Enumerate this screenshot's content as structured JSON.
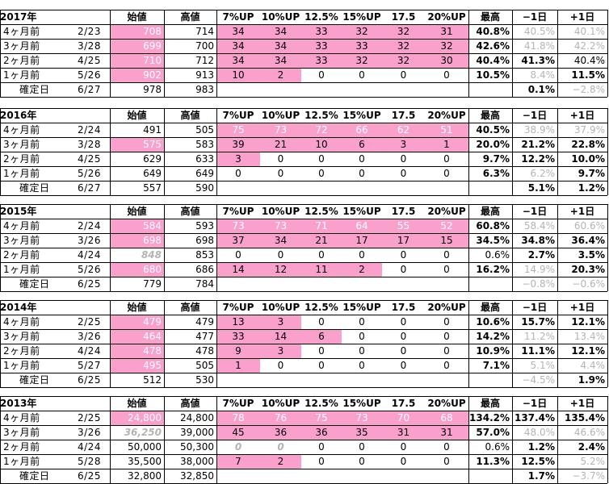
{
  "columns": [
    "始値",
    "高値",
    "7%UP",
    "10%UP",
    "12.5%",
    "15%UP",
    "17.5",
    "20%UP",
    "最高",
    "−1日",
    "+1日"
  ],
  "blocks": [
    {
      "year": "2017年",
      "rows": [
        {
          "label": "4ヶ月前",
          "date": "2/23",
          "open": "708",
          "high": "714",
          "c7": "34",
          "c10": "34",
          "c125": "33",
          "c15": "32",
          "c175": "32",
          "c20": "31",
          "max": "40.8%",
          "m1": "40.5%",
          "p1": "40.1%"
        },
        {
          "label": "3ヶ月前",
          "date": "3/28",
          "open": "699",
          "high": "700",
          "c7": "34",
          "c10": "34",
          "c125": "33",
          "c15": "33",
          "c175": "32",
          "c20": "32",
          "max": "42.6%",
          "m1": "41.8%",
          "p1": "42.2%"
        },
        {
          "label": "2ヶ月前",
          "date": "4/25",
          "open": "710",
          "high": "712",
          "c7": "34",
          "c10": "34",
          "c125": "33",
          "c15": "32",
          "c175": "32",
          "c20": "30",
          "max": "40.4%",
          "m1": "41.3%",
          "p1": "40.4%"
        },
        {
          "label": "1ヶ月前",
          "date": "5/26",
          "open": "902",
          "high": "913",
          "c7": "10",
          "c10": "2",
          "c125": "0",
          "c15": "0",
          "c175": "0",
          "c20": "0",
          "max": "10.5%",
          "m1": "8.4%",
          "p1": "11.5%"
        }
      ],
      "confirm": {
        "label": "確定日",
        "date": "6/27",
        "open": "978",
        "high": "983",
        "m1": "0.1%",
        "p1": "−2.8%"
      }
    },
    {
      "year": "2016年",
      "rows": [
        {
          "label": "4ヶ月前",
          "date": "2/24",
          "open": "491",
          "high": "505",
          "c7": "75",
          "c10": "73",
          "c125": "72",
          "c15": "66",
          "c175": "62",
          "c20": "51",
          "max": "40.5%",
          "m1": "38.9%",
          "p1": "37.9%"
        },
        {
          "label": "3ヶ月前",
          "date": "3/28",
          "open": "575",
          "high": "583",
          "c7": "39",
          "c10": "21",
          "c125": "10",
          "c15": "6",
          "c175": "3",
          "c20": "1",
          "max": "20.0%",
          "m1": "21.2%",
          "p1": "22.8%"
        },
        {
          "label": "2ヶ月前",
          "date": "4/25",
          "open": "629",
          "high": "633",
          "c7": "3",
          "c10": "0",
          "c125": "0",
          "c15": "0",
          "c175": "0",
          "c20": "0",
          "max": "9.7%",
          "m1": "12.2%",
          "p1": "10.0%"
        },
        {
          "label": "1ヶ月前",
          "date": "5/26",
          "open": "649",
          "high": "649",
          "c7": "0",
          "c10": "0",
          "c125": "0",
          "c15": "0",
          "c175": "0",
          "c20": "0",
          "max": "6.3%",
          "m1": "6.2%",
          "p1": "9.7%"
        }
      ],
      "confirm": {
        "label": "確定日",
        "date": "6/27",
        "open": "557",
        "high": "590",
        "m1": "5.1%",
        "p1": "1.2%"
      }
    },
    {
      "year": "2015年",
      "rows": [
        {
          "label": "4ヶ月前",
          "date": "2/24",
          "open": "584",
          "high": "593",
          "c7": "73",
          "c10": "73",
          "c125": "71",
          "c15": "64",
          "c175": "55",
          "c20": "52",
          "max": "60.8%",
          "m1": "58.4%",
          "p1": "60.6%"
        },
        {
          "label": "3ヶ月前",
          "date": "3/26",
          "open": "698",
          "high": "698",
          "c7": "37",
          "c10": "34",
          "c125": "21",
          "c15": "17",
          "c175": "17",
          "c20": "15",
          "max": "34.5%",
          "m1": "34.8%",
          "p1": "36.4%"
        },
        {
          "label": "2ヶ月前",
          "date": "4/24",
          "open": "848",
          "high": "853",
          "c7": "0",
          "c10": "0",
          "c125": "0",
          "c15": "0",
          "c175": "0",
          "c20": "0",
          "max": "0.6%",
          "m1": "2.7%",
          "p1": "3.5%"
        },
        {
          "label": "1ヶ月前",
          "date": "5/26",
          "open": "680",
          "high": "686",
          "c7": "14",
          "c10": "12",
          "c125": "11",
          "c15": "2",
          "c175": "0",
          "c20": "0",
          "max": "16.2%",
          "m1": "14.9%",
          "p1": "20.3%"
        }
      ],
      "confirm": {
        "label": "確定日",
        "date": "6/25",
        "open": "779",
        "high": "784",
        "m1": "−0.8%",
        "p1": "−0.6%"
      }
    },
    {
      "year": "2014年",
      "rows": [
        {
          "label": "4ヶ月前",
          "date": "2/25",
          "open": "479",
          "high": "479",
          "c7": "13",
          "c10": "3",
          "c125": "0",
          "c15": "0",
          "c175": "0",
          "c20": "0",
          "max": "10.6%",
          "m1": "15.7%",
          "p1": "12.1%"
        },
        {
          "label": "3ヶ月前",
          "date": "3/26",
          "open": "464",
          "high": "477",
          "c7": "33",
          "c10": "14",
          "c125": "6",
          "c15": "0",
          "c175": "0",
          "c20": "0",
          "max": "14.2%",
          "m1": "11.2%",
          "p1": "13.4%"
        },
        {
          "label": "2ヶ月前",
          "date": "4/24",
          "open": "478",
          "high": "478",
          "c7": "9",
          "c10": "3",
          "c125": "0",
          "c15": "0",
          "c175": "0",
          "c20": "0",
          "max": "10.9%",
          "m1": "11.1%",
          "p1": "12.1%"
        },
        {
          "label": "1ヶ月前",
          "date": "5/27",
          "open": "495",
          "high": "505",
          "c7": "1",
          "c10": "0",
          "c125": "0",
          "c15": "0",
          "c175": "0",
          "c20": "0",
          "max": "7.1%",
          "m1": "5.1%",
          "p1": "4.4%"
        }
      ],
      "confirm": {
        "label": "確定日",
        "date": "6/25",
        "open": "512",
        "high": "530",
        "m1": "−4.5%",
        "p1": "1.9%"
      }
    },
    {
      "year": "2013年",
      "rows": [
        {
          "label": "4ヶ月前",
          "date": "2/25",
          "open": "24,800",
          "high": "24,800",
          "c7": "78",
          "c10": "76",
          "c125": "75",
          "c15": "73",
          "c175": "70",
          "c20": "68",
          "max": "134.2%",
          "m1": "137.4%",
          "p1": "135.4%"
        },
        {
          "label": "3ヶ月前",
          "date": "3/26",
          "open": "36,250",
          "high": "39,000",
          "c7": "45",
          "c10": "36",
          "c125": "36",
          "c15": "35",
          "c175": "31",
          "c20": "31",
          "max": "57.0%",
          "m1": "48.0%",
          "p1": "46.6%"
        },
        {
          "label": "2ヶ月前",
          "date": "4/24",
          "open": "50,000",
          "high": "50,300",
          "c7": "0",
          "c10": "0",
          "c125": "0",
          "c15": "0",
          "c175": "0",
          "c20": "0",
          "max": "0.6%",
          "m1": "1.2%",
          "p1": "2.4%"
        },
        {
          "label": "1ヶ月前",
          "date": "5/28",
          "open": "35,500",
          "high": "38,000",
          "c7": "7",
          "c10": "2",
          "c125": "0",
          "c15": "0",
          "c175": "0",
          "c20": "0",
          "max": "11.3%",
          "m1": "12.5%",
          "p1": "5.2%"
        }
      ],
      "confirm": {
        "label": "確定日",
        "date": "6/25",
        "open": "32,800",
        "high": "32,850",
        "m1": "1.7%",
        "p1": "−3.7%"
      }
    }
  ],
  "styles": {
    "highlight_color": "#f9a0cd",
    "grey_text_color": "#b4b4b4",
    "header_label_suffix": ""
  }
}
